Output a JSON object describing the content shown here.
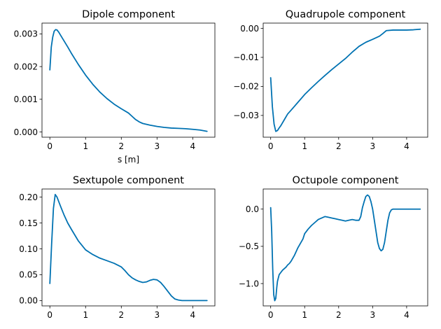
{
  "chart_data": [
    {
      "type": "line",
      "title": "Dipole component",
      "xlabel": "s [m]",
      "ylabel": "",
      "xlim": [
        -0.22,
        4.62
      ],
      "ylim": [
        -0.00016,
        0.00333
      ],
      "xticks": [
        0,
        1,
        2,
        3,
        4
      ],
      "xtick_labels": [
        "0",
        "1",
        "2",
        "3",
        "4"
      ],
      "yticks": [
        0,
        0.001,
        0.002,
        0.003
      ],
      "ytick_labels": [
        "0.000",
        "0.001",
        "0.002",
        "0.003"
      ],
      "color": "#0072B2",
      "series": [
        {
          "name": "dipole",
          "x": [
            0,
            0.04,
            0.08,
            0.12,
            0.16,
            0.2,
            0.25,
            0.3,
            0.4,
            0.5,
            0.6,
            0.8,
            1.0,
            1.2,
            1.4,
            1.6,
            1.8,
            2.0,
            2.2,
            2.3,
            2.4,
            2.5,
            2.6,
            2.8,
            3.0,
            3.2,
            3.4,
            3.6,
            3.8,
            4.0,
            4.2,
            4.4
          ],
          "y": [
            0.0019,
            0.0026,
            0.0029,
            0.00308,
            0.00313,
            0.00312,
            0.00305,
            0.00296,
            0.00278,
            0.0026,
            0.00241,
            0.00206,
            0.00174,
            0.00146,
            0.00122,
            0.00102,
            0.00085,
            0.00071,
            0.00058,
            0.00048,
            0.00038,
            0.00031,
            0.00026,
            0.00021,
            0.00017,
            0.00014,
            0.00012,
            0.00011,
            0.0001,
            8e-05,
            6e-05,
            2e-05
          ]
        }
      ]
    },
    {
      "type": "line",
      "title": "Quadrupole component",
      "xlabel": "",
      "ylabel": "",
      "xlim": [
        -0.22,
        4.62
      ],
      "ylim": [
        -0.0375,
        0.0018
      ],
      "xticks": [
        0,
        1,
        2,
        3,
        4
      ],
      "xtick_labels": [
        "0",
        "1",
        "2",
        "3",
        "4"
      ],
      "yticks": [
        0,
        -0.01,
        -0.02,
        -0.03
      ],
      "ytick_labels": [
        "0.00",
        "−0.01",
        "−0.02",
        "−0.03"
      ],
      "color": "#0072B2",
      "series": [
        {
          "name": "quadrupole",
          "x": [
            0,
            0.05,
            0.1,
            0.15,
            0.2,
            0.25,
            0.3,
            0.4,
            0.5,
            0.6,
            0.8,
            1.0,
            1.2,
            1.4,
            1.6,
            1.8,
            2.0,
            2.2,
            2.4,
            2.6,
            2.8,
            3.0,
            3.2,
            3.3,
            3.4,
            3.6,
            3.8,
            4.0,
            4.2,
            4.4
          ],
          "y": [
            -0.017,
            -0.027,
            -0.033,
            -0.0355,
            -0.0352,
            -0.0343,
            -0.0335,
            -0.0315,
            -0.0295,
            -0.0282,
            -0.0255,
            -0.0228,
            -0.0205,
            -0.0183,
            -0.0162,
            -0.0142,
            -0.0123,
            -0.0104,
            -0.0082,
            -0.0062,
            -0.0048,
            -0.0038,
            -0.0027,
            -0.0018,
            -0.0008,
            -0.0006,
            -0.0006,
            -0.0006,
            -0.0005,
            -0.0003
          ]
        }
      ]
    },
    {
      "type": "line",
      "title": "Sextupole component",
      "xlabel": "",
      "ylabel": "",
      "xlim": [
        -0.22,
        4.62
      ],
      "ylim": [
        -0.0103,
        0.2156
      ],
      "xticks": [
        0,
        1,
        2,
        3,
        4
      ],
      "xtick_labels": [
        "0",
        "1",
        "2",
        "3",
        "4"
      ],
      "yticks": [
        0,
        0.05,
        0.1,
        0.15,
        0.2
      ],
      "ytick_labels": [
        "0.00",
        "0.05",
        "0.10",
        "0.15",
        "0.20"
      ],
      "color": "#0072B2",
      "series": [
        {
          "name": "sextupole",
          "x": [
            0,
            0.05,
            0.1,
            0.15,
            0.2,
            0.3,
            0.4,
            0.5,
            0.6,
            0.8,
            1.0,
            1.2,
            1.4,
            1.6,
            1.8,
            2.0,
            2.1,
            2.2,
            2.3,
            2.4,
            2.5,
            2.6,
            2.7,
            2.8,
            2.9,
            3.0,
            3.1,
            3.2,
            3.3,
            3.4,
            3.5,
            3.6,
            3.7,
            3.8,
            4.0,
            4.2,
            4.4
          ],
          "y": [
            0.033,
            0.11,
            0.178,
            0.205,
            0.2,
            0.182,
            0.165,
            0.15,
            0.138,
            0.115,
            0.098,
            0.089,
            0.082,
            0.077,
            0.072,
            0.065,
            0.058,
            0.05,
            0.044,
            0.04,
            0.037,
            0.035,
            0.036,
            0.039,
            0.041,
            0.04,
            0.035,
            0.027,
            0.018,
            0.009,
            0.003,
            0.001,
            0,
            0,
            0,
            0,
            0
          ]
        }
      ]
    },
    {
      "type": "line",
      "title": "Octupole component",
      "xlabel": "",
      "ylabel": "",
      "xlim": [
        -0.22,
        4.62
      ],
      "ylim": [
        -1.3,
        0.27
      ],
      "xticks": [
        0,
        1,
        2,
        3,
        4
      ],
      "xtick_labels": [
        "0",
        "1",
        "2",
        "3",
        "4"
      ],
      "yticks": [
        0,
        -0.5,
        -1.0
      ],
      "ytick_labels": [
        "0.0",
        "−0.5",
        "−1.0"
      ],
      "color": "#0072B2",
      "series": [
        {
          "name": "octupole",
          "x": [
            0,
            0.03,
            0.06,
            0.09,
            0.12,
            0.15,
            0.18,
            0.2,
            0.25,
            0.3,
            0.35,
            0.4,
            0.45,
            0.5,
            0.55,
            0.6,
            0.65,
            0.7,
            0.75,
            0.8,
            0.85,
            0.9,
            0.95,
            1.0,
            1.1,
            1.2,
            1.3,
            1.4,
            1.5,
            1.6,
            1.7,
            1.8,
            1.9,
            2.0,
            2.1,
            2.2,
            2.3,
            2.4,
            2.5,
            2.6,
            2.65,
            2.7,
            2.75,
            2.8,
            2.85,
            2.9,
            2.95,
            3.0,
            3.05,
            3.1,
            3.15,
            3.2,
            3.25,
            3.3,
            3.35,
            3.4,
            3.45,
            3.5,
            3.55,
            3.6,
            3.7,
            3.8,
            4.0,
            4.2,
            4.4
          ],
          "y": [
            0.02,
            -0.3,
            -0.8,
            -1.15,
            -1.23,
            -1.2,
            -1.05,
            -0.97,
            -0.88,
            -0.85,
            -0.82,
            -0.8,
            -0.78,
            -0.75,
            -0.73,
            -0.7,
            -0.66,
            -0.62,
            -0.57,
            -0.52,
            -0.48,
            -0.44,
            -0.4,
            -0.33,
            -0.27,
            -0.22,
            -0.18,
            -0.14,
            -0.12,
            -0.1,
            -0.11,
            -0.12,
            -0.13,
            -0.14,
            -0.15,
            -0.16,
            -0.15,
            -0.14,
            -0.15,
            -0.15,
            -0.1,
            0.02,
            0.1,
            0.17,
            0.19,
            0.17,
            0.1,
            0.0,
            -0.15,
            -0.3,
            -0.45,
            -0.53,
            -0.56,
            -0.54,
            -0.45,
            -0.3,
            -0.15,
            -0.05,
            -0.01,
            0,
            0,
            0,
            0,
            0,
            0
          ]
        }
      ]
    }
  ]
}
